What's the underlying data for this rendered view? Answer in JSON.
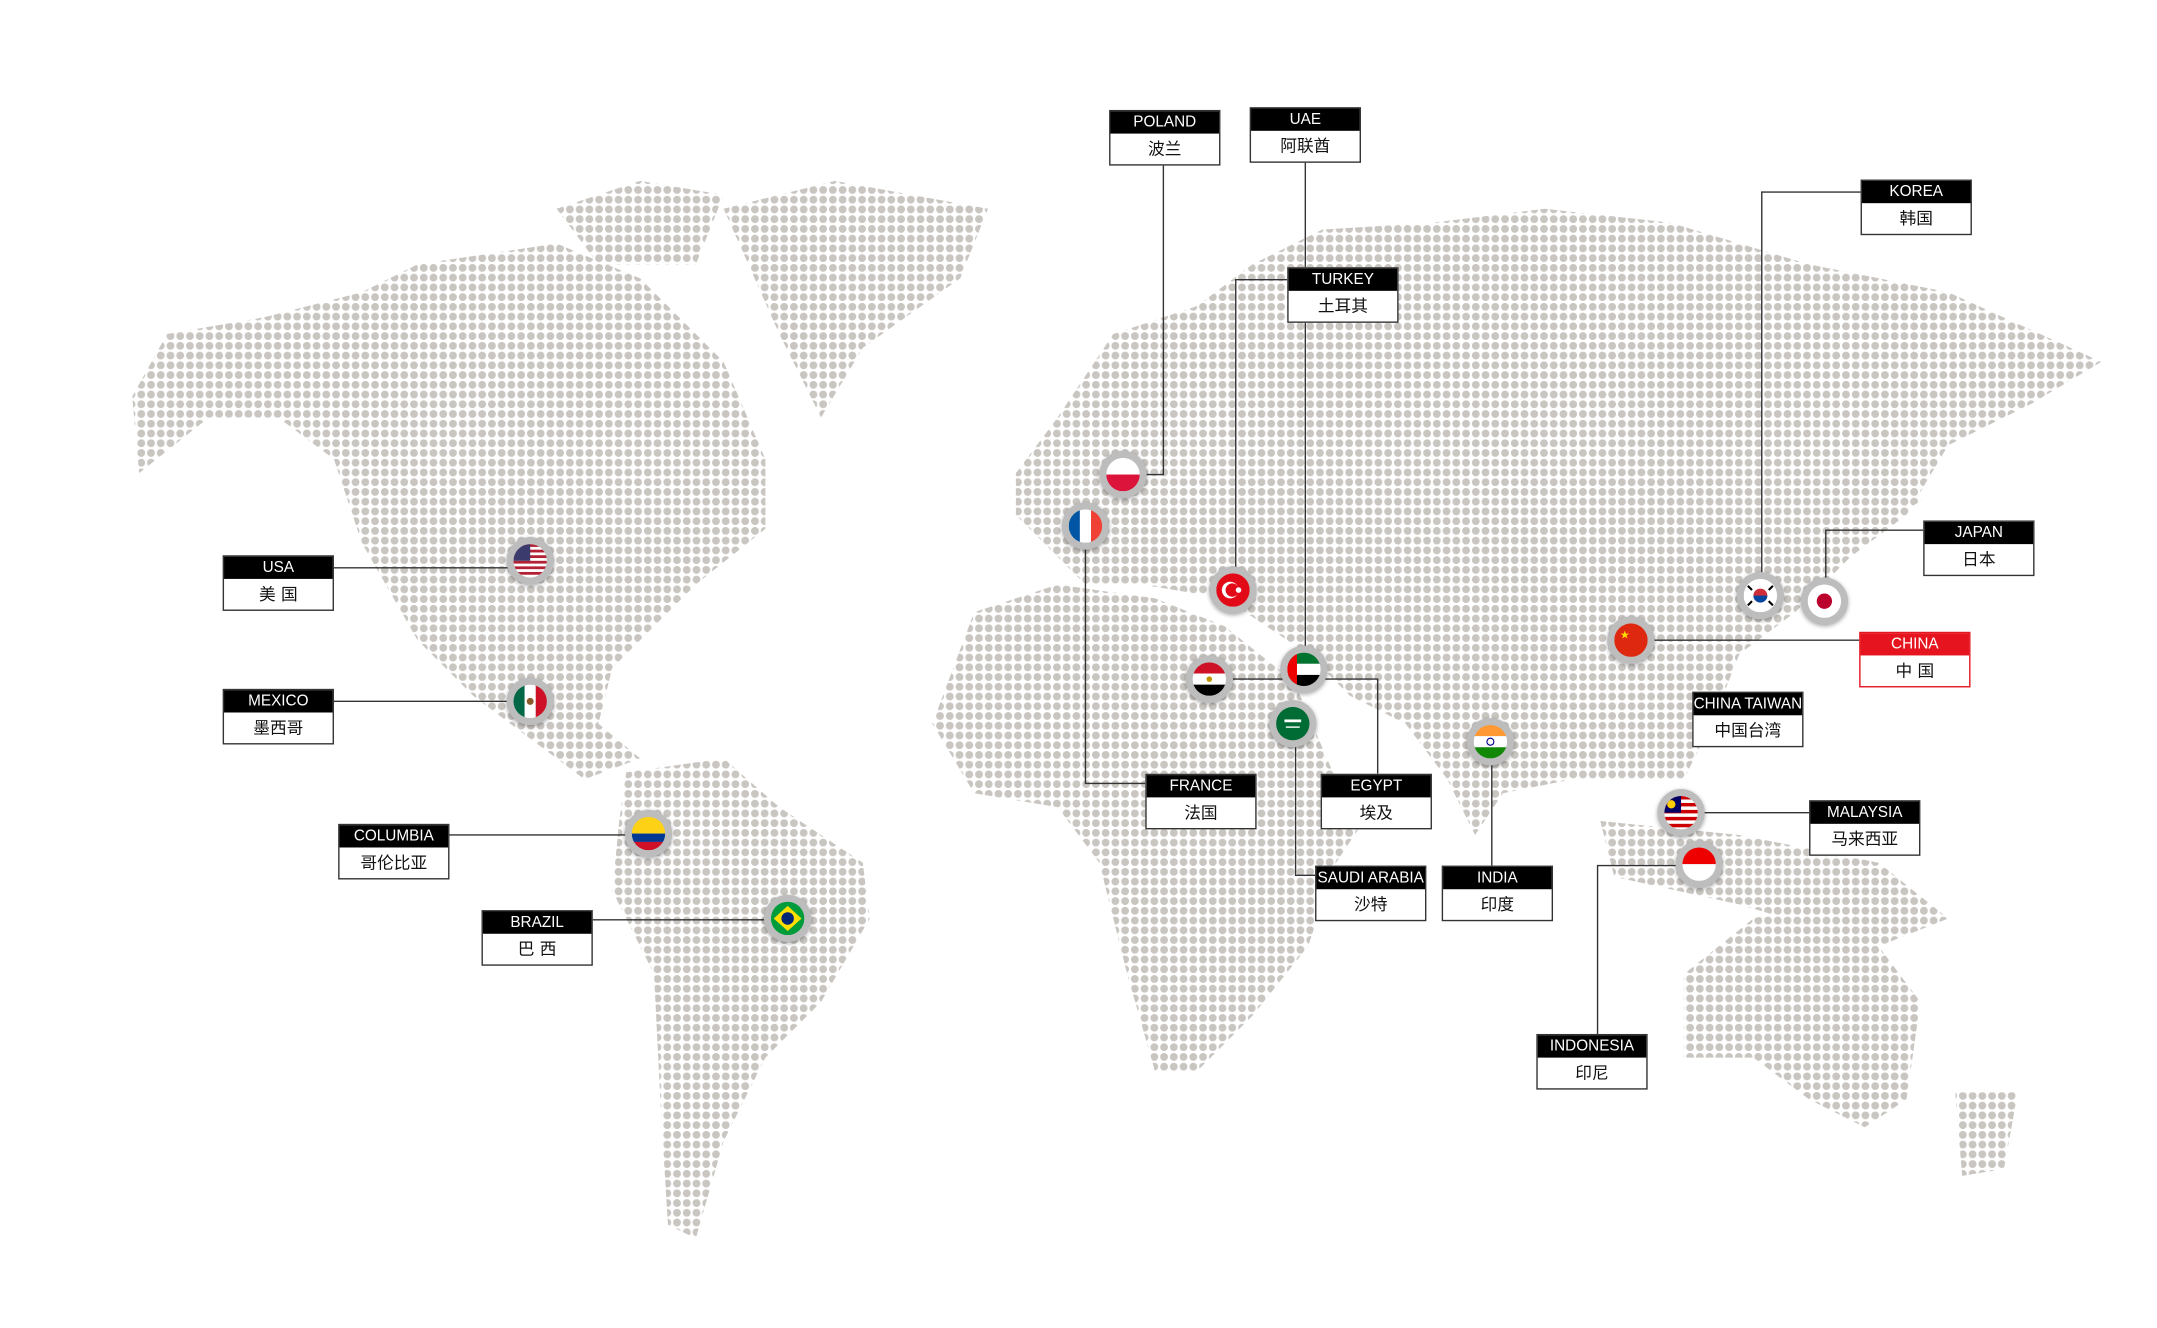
{
  "colors": {
    "dots": "#c9c5c1",
    "line": "#333333",
    "highlight": "#e5141e"
  },
  "countries": [
    {
      "id": "poland",
      "en": "POLAND",
      "cn": "波兰",
      "flag": "poland-flag-icon"
    },
    {
      "id": "uae",
      "en": "UAE",
      "cn": "阿联酋",
      "flag": "uae-flag-icon"
    },
    {
      "id": "turkey",
      "en": "TURKEY",
      "cn": "土耳其",
      "flag": "turkey-flag-icon"
    },
    {
      "id": "korea",
      "en": "KOREA",
      "cn": "韩国",
      "flag": "korea-flag-icon"
    },
    {
      "id": "japan",
      "en": "JAPAN",
      "cn": "日本",
      "flag": "japan-flag-icon"
    },
    {
      "id": "china",
      "en": "CHINA",
      "cn": "中 国",
      "flag": "china-flag-icon",
      "highlight": true
    },
    {
      "id": "taiwan",
      "en": "CHINA TAIWAN",
      "cn": "中国台湾"
    },
    {
      "id": "malaysia",
      "en": "MALAYSIA",
      "cn": "马来西亚",
      "flag": "malaysia-flag-icon"
    },
    {
      "id": "indonesia",
      "en": "INDONESIA",
      "cn": "印尼",
      "flag": "indonesia-flag-icon"
    },
    {
      "id": "india",
      "en": "INDIA",
      "cn": "印度",
      "flag": "india-flag-icon"
    },
    {
      "id": "saudi",
      "en": "SAUDI ARABIA",
      "cn": "沙特",
      "flag": "saudi-arabia-flag-icon"
    },
    {
      "id": "egypt",
      "en": "EGYPT",
      "cn": "埃及",
      "flag": "egypt-flag-icon"
    },
    {
      "id": "france",
      "en": "FRANCE",
      "cn": "法国",
      "flag": "france-flag-icon"
    },
    {
      "id": "usa",
      "en": "USA",
      "cn": "美 国",
      "flag": "usa-flag-icon"
    },
    {
      "id": "mexico",
      "en": "MEXICO",
      "cn": "墨西哥",
      "flag": "mexico-flag-icon"
    },
    {
      "id": "columbia",
      "en": "COLUMBIA",
      "cn": "哥伦比亚",
      "flag": "colombia-flag-icon"
    },
    {
      "id": "brazil",
      "en": "BRAZIL",
      "cn": "巴 西",
      "flag": "brazil-flag-icon"
    }
  ]
}
